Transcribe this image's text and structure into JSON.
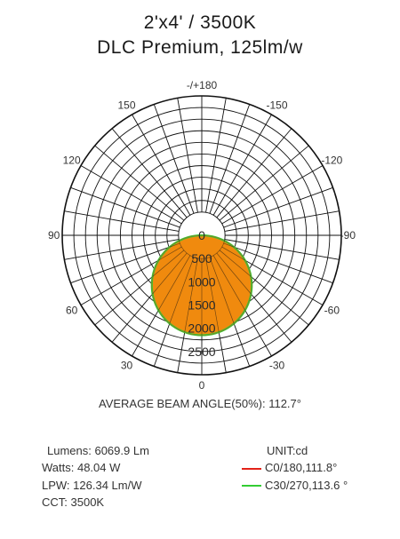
{
  "title": "2'x4' / 3500K",
  "subtitle": "DLC Premium, 125lm/w",
  "beam_angle_text": "AVERAGE BEAM ANGLE(50%): 112.7°",
  "stats": {
    "lumens": "Lumens: 6069.9 Lm",
    "watts": "Watts: 48.04 W",
    "lpw": "LPW: 126.34 Lm/W",
    "cct": "CCT: 3500K"
  },
  "legend": {
    "unit": "UNIT:cd",
    "c0": "C0/180,111.8°",
    "c30": "C30/270,113.6 °"
  },
  "colors": {
    "fill": "#f08a0e",
    "c0_line": "#e32219",
    "c30_line": "#33cc33",
    "grid": "#111111"
  },
  "chart_data": {
    "type": "polar",
    "angle_labels": [
      "-/+180",
      "150",
      "120",
      "90",
      "60",
      "30",
      "0",
      "-30",
      "-60",
      "-90",
      "-120",
      "-150"
    ],
    "angles_deg": [
      180,
      150,
      120,
      90,
      60,
      30,
      0,
      -30,
      -60,
      -90,
      -120,
      -150
    ],
    "radial_labels": [
      "0",
      "500",
      "1000",
      "1500",
      "2000",
      "2500"
    ],
    "radial_values": [
      0,
      500,
      1000,
      1500,
      2000,
      2500
    ],
    "rlim": [
      0,
      3000
    ],
    "grid": true,
    "series": [
      {
        "name": "C0/180,111.8°",
        "type": "cosine-lobe",
        "peak_cd": 2150,
        "color": "#e32219"
      },
      {
        "name": "C30/270,113.6 °",
        "type": "cosine-lobe",
        "peak_cd": 2150,
        "color": "#33cc33"
      }
    ]
  }
}
